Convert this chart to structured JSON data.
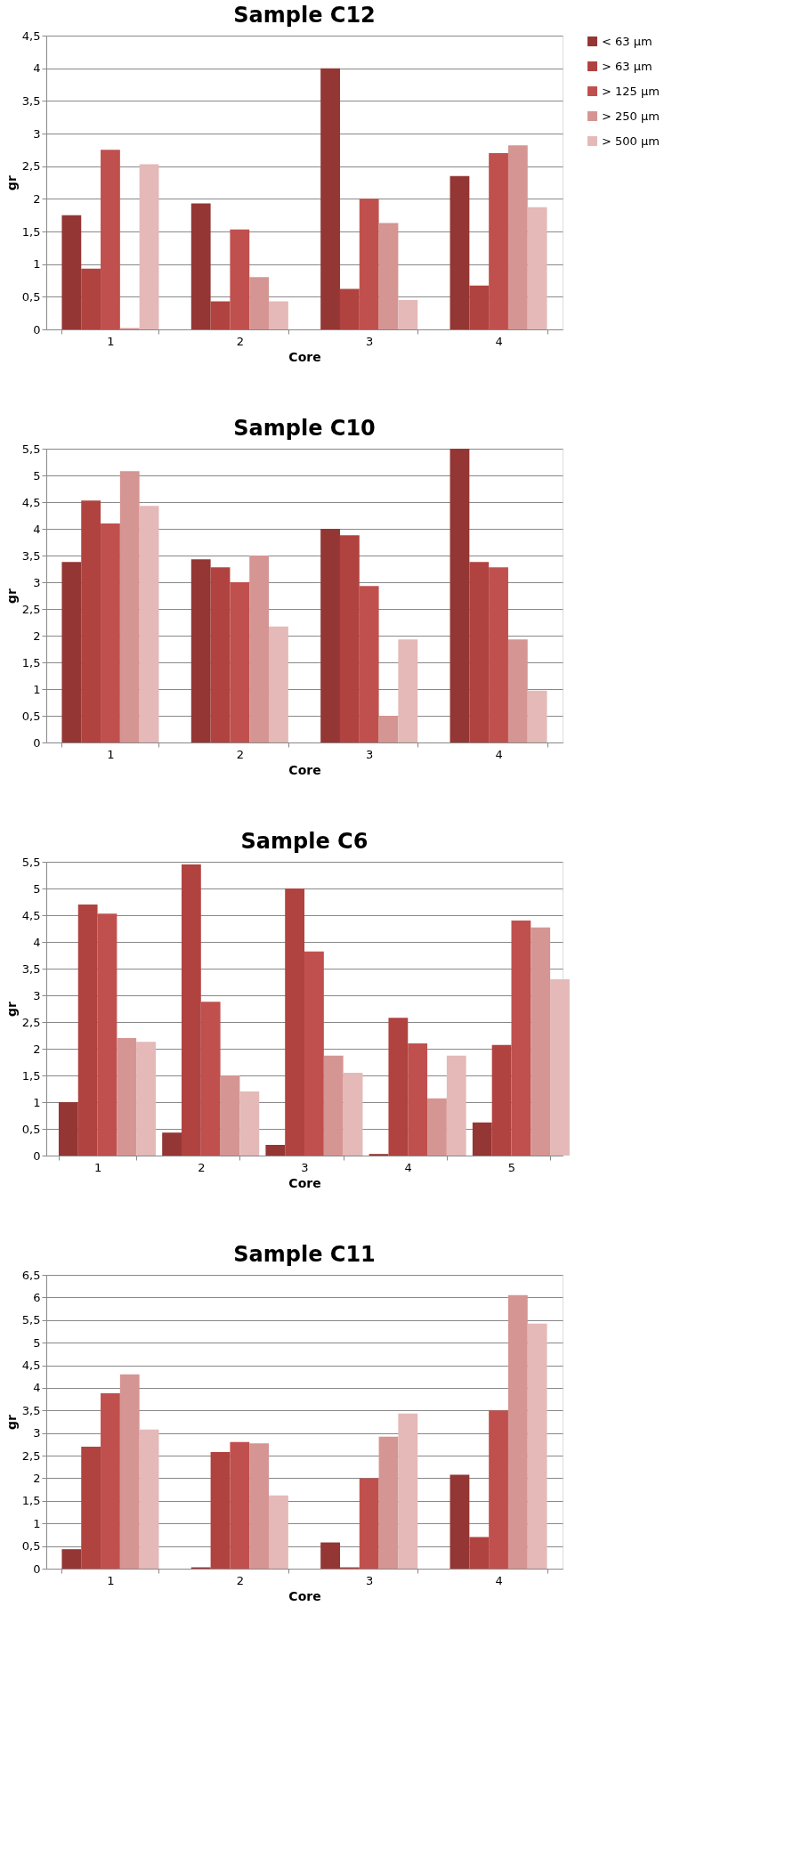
{
  "chart_data": [
    {
      "type": "bar",
      "title": "Sample C12",
      "xlabel": "Core",
      "ylabel": "gr",
      "categories": [
        "1",
        "2",
        "3",
        "4"
      ],
      "ylim": [
        0,
        4.5
      ],
      "yticks": [
        0,
        {
          "value": 0.5,
          "label": "0,5"
        },
        1,
        {
          "value": 1.5,
          "label": "1,5"
        },
        2,
        {
          "value": 2.5,
          "label": "2,5"
        },
        3,
        {
          "value": 3.5,
          "label": "3,5"
        },
        4,
        {
          "value": 4.5,
          "label": "4,5"
        }
      ],
      "grid": "y",
      "legend": "right",
      "series": [
        {
          "name": "< 63 µm",
          "color": "#943634",
          "values": [
            1.75,
            1.93,
            4.0,
            2.35
          ]
        },
        {
          "name": "> 63 µm",
          "color": "#b0433f",
          "values": [
            0.93,
            0.43,
            0.62,
            0.67
          ]
        },
        {
          "name": "> 125 µm",
          "color": "#c0504d",
          "values": [
            2.75,
            1.53,
            2.0,
            2.7
          ]
        },
        {
          "name": "> 250 µm",
          "color": "#d59593",
          "values": [
            0.02,
            0.8,
            1.63,
            2.82
          ]
        },
        {
          "name": "> 500 µm",
          "color": "#e4b9b8",
          "values": [
            2.53,
            0.43,
            0.45,
            1.87
          ]
        }
      ]
    },
    {
      "type": "bar",
      "title": "Sample C10",
      "xlabel": "Core",
      "ylabel": "gr",
      "categories": [
        "1",
        "2",
        "3",
        "4"
      ],
      "ylim": [
        0,
        5.5
      ],
      "yticks": [
        0,
        {
          "value": 0.5,
          "label": "0,5"
        },
        1,
        {
          "value": 1.5,
          "label": "1,5"
        },
        2,
        {
          "value": 2.5,
          "label": "2,5"
        },
        3,
        {
          "value": 3.5,
          "label": "3,5"
        },
        4,
        {
          "value": 4.5,
          "label": "4,5"
        },
        5,
        {
          "value": 5.5,
          "label": "5,5"
        }
      ],
      "grid": "y",
      "legend": "right",
      "series": [
        {
          "name": "< 63 µm",
          "color": "#943634",
          "values": [
            3.38,
            3.43,
            4.0,
            5.5
          ]
        },
        {
          "name": "> 63 µm",
          "color": "#b0433f",
          "values": [
            4.53,
            3.28,
            3.88,
            3.38
          ]
        },
        {
          "name": "> 125 µm",
          "color": "#c0504d",
          "values": [
            4.1,
            3.0,
            2.93,
            3.28
          ]
        },
        {
          "name": "> 250 µm",
          "color": "#d59593",
          "values": [
            5.08,
            3.5,
            0.5,
            1.93
          ]
        },
        {
          "name": "> 500 µm",
          "color": "#e4b9b8",
          "values": [
            4.43,
            2.17,
            1.93,
            0.97
          ]
        }
      ]
    },
    {
      "type": "bar",
      "title": "Sample C6",
      "xlabel": "Core",
      "ylabel": "gr",
      "categories": [
        "1",
        "2",
        "3",
        "4",
        "5"
      ],
      "ylim": [
        0,
        5.5
      ],
      "yticks": [
        0,
        {
          "value": 0.5,
          "label": "0,5"
        },
        1,
        {
          "value": 1.5,
          "label": "1,5"
        },
        2,
        {
          "value": 2.5,
          "label": "2,5"
        },
        3,
        {
          "value": 3.5,
          "label": "3,5"
        },
        4,
        {
          "value": 4.5,
          "label": "4,5"
        },
        5,
        {
          "value": 5.5,
          "label": "5,5"
        }
      ],
      "grid": "y",
      "legend": "right",
      "series": [
        {
          "name": "< 63 µm",
          "color": "#943634",
          "values": [
            1.0,
            0.43,
            0.2,
            0.03,
            0.62
          ]
        },
        {
          "name": "> 63 µm",
          "color": "#b0433f",
          "values": [
            4.7,
            5.45,
            5.0,
            2.58,
            2.07
          ]
        },
        {
          "name": "> 125 µm",
          "color": "#c0504d",
          "values": [
            4.53,
            2.88,
            3.82,
            2.1,
            4.4
          ]
        },
        {
          "name": "> 250 µm",
          "color": "#d59593",
          "values": [
            2.2,
            1.5,
            1.87,
            1.07,
            4.27
          ]
        },
        {
          "name": "> 500 µm",
          "color": "#e4b9b8",
          "values": [
            2.13,
            1.2,
            1.55,
            1.87,
            3.3
          ]
        }
      ]
    },
    {
      "type": "bar",
      "title": "Sample C11",
      "xlabel": "Core",
      "ylabel": "gr",
      "categories": [
        "1",
        "2",
        "3",
        "4"
      ],
      "ylim": [
        0,
        6.5
      ],
      "yticks": [
        0,
        {
          "value": 0.5,
          "label": "0,5"
        },
        1,
        {
          "value": 1.5,
          "label": "1,5"
        },
        2,
        {
          "value": 2.5,
          "label": "2,5"
        },
        3,
        {
          "value": 3.5,
          "label": "3,5"
        },
        4,
        {
          "value": 4.5,
          "label": "4,5"
        },
        5,
        {
          "value": 5.5,
          "label": "5,5"
        },
        6,
        {
          "value": 6.5,
          "label": "6,5"
        }
      ],
      "grid": "y",
      "legend": "right",
      "series": [
        {
          "name": "< 63 µm",
          "color": "#943634",
          "values": [
            0.43,
            0.03,
            0.58,
            2.08
          ]
        },
        {
          "name": "> 63 µm",
          "color": "#b0433f",
          "values": [
            2.7,
            2.58,
            0.03,
            0.7
          ]
        },
        {
          "name": "> 125 µm",
          "color": "#c0504d",
          "values": [
            3.88,
            2.8,
            2.0,
            3.5
          ]
        },
        {
          "name": "> 250 µm",
          "color": "#d59593",
          "values": [
            4.3,
            2.77,
            2.92,
            6.05
          ]
        },
        {
          "name": "> 500 µm",
          "color": "#e4b9b8",
          "values": [
            3.08,
            1.62,
            3.43,
            5.42
          ]
        }
      ]
    }
  ]
}
